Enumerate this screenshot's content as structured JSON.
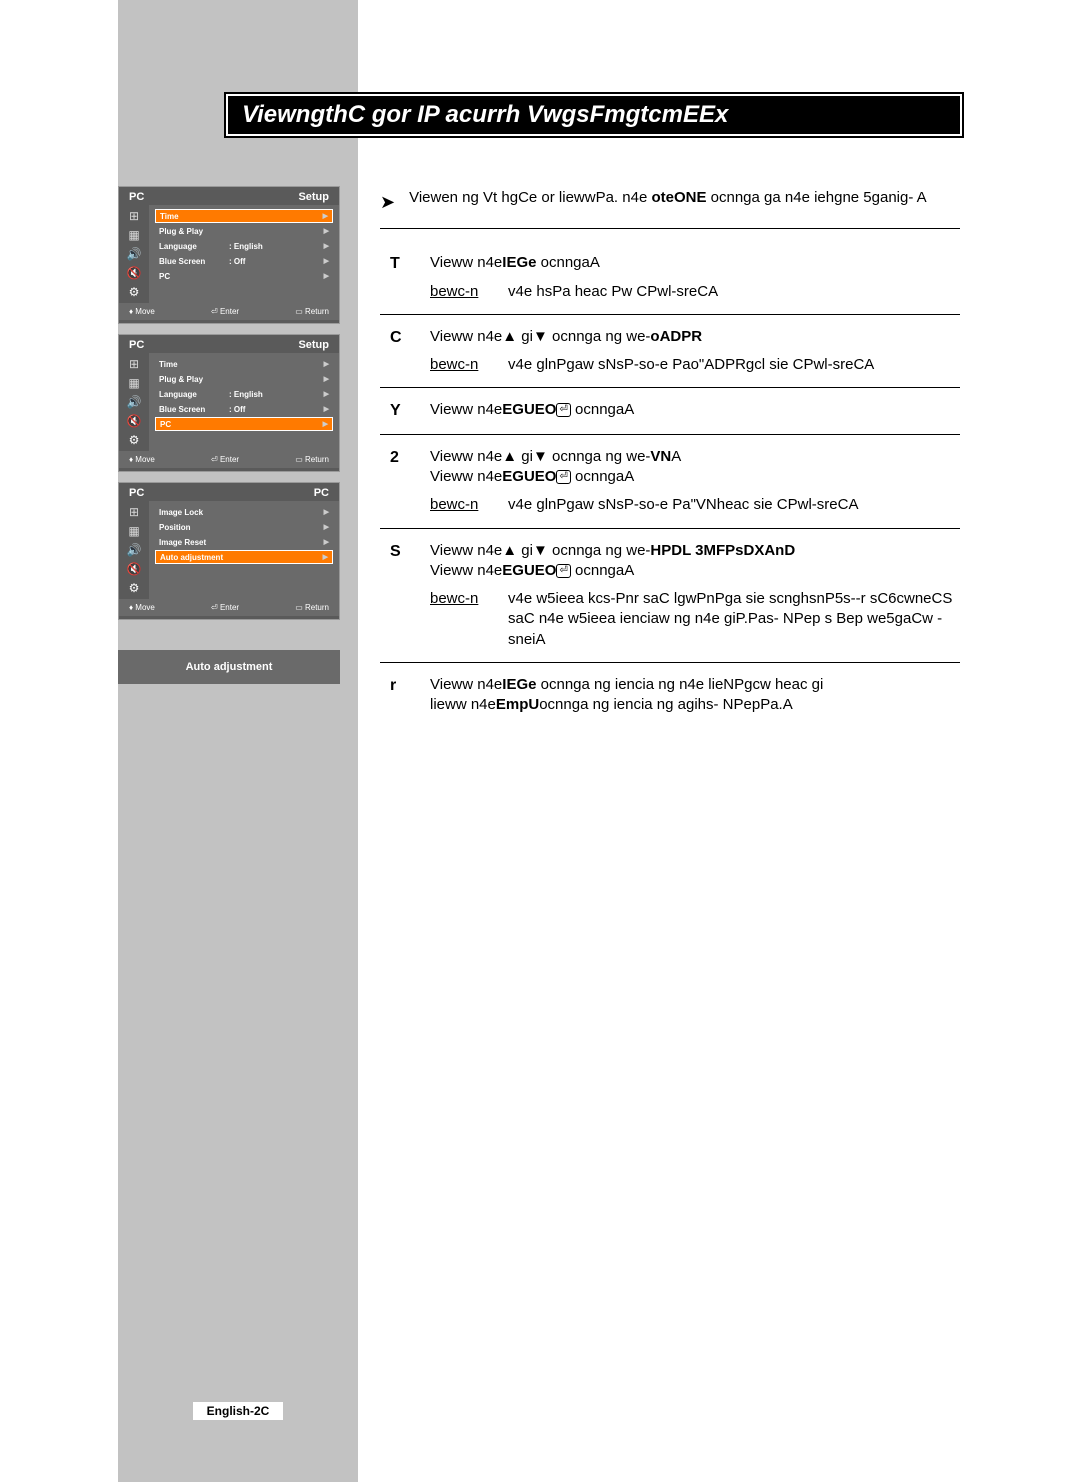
{
  "title": "ViewngthC gor IP acurrh VwgsFmgtcmEEx",
  "sidebar_bg": "#c2c2c2",
  "panels": [
    {
      "header_left": "PC",
      "header_right": "Setup",
      "highlight_index": 0,
      "items": [
        {
          "label": "Time",
          "value": "",
          "arrow": true
        },
        {
          "label": "Plug & Play",
          "value": "",
          "arrow": true
        },
        {
          "label": "Language",
          "value": ": English",
          "arrow": true
        },
        {
          "label": "Blue Screen",
          "value": ": Off",
          "arrow": true
        },
        {
          "label": "PC",
          "value": "",
          "arrow": true
        }
      ]
    },
    {
      "header_left": "PC",
      "header_right": "Setup",
      "highlight_index": 4,
      "items": [
        {
          "label": "Time",
          "value": "",
          "arrow": true
        },
        {
          "label": "Plug & Play",
          "value": "",
          "arrow": true
        },
        {
          "label": "Language",
          "value": ": English",
          "arrow": true
        },
        {
          "label": "Blue Screen",
          "value": ": Off",
          "arrow": true
        },
        {
          "label": "PC",
          "value": "",
          "arrow": true
        }
      ]
    },
    {
      "header_left": "PC",
      "header_right": "PC",
      "highlight_index": 3,
      "items": [
        {
          "label": "Image Lock",
          "value": "",
          "arrow": true
        },
        {
          "label": "Position",
          "value": "",
          "arrow": true
        },
        {
          "label": "Image Reset",
          "value": "",
          "arrow": true
        },
        {
          "label": "Auto adjustment",
          "value": "",
          "arrow": true
        }
      ]
    }
  ],
  "footer": {
    "move": "Move",
    "enter": "Enter",
    "return": "Return"
  },
  "auto_adjustment_label": "Auto adjustment",
  "note": {
    "text_a": "Viewen ng Vt hgCe or liewwPa. n4e",
    "text_b": "oteONE",
    "text_c": "ocnnga ga n4e iehgne 5ganig- A"
  },
  "steps": [
    {
      "num": "T",
      "lines": [
        {
          "parts": [
            "Vieww n4e",
            {
              "b": "IEGe"
            },
            "  ocnngaA"
          ]
        }
      ],
      "result": "v4e hsPa heac Pw CPwl-sreCA"
    },
    {
      "num": "C",
      "lines": [
        {
          "parts": [
            "Vieww n4e",
            {
              "up": true
            },
            " gi",
            {
              "down": true
            },
            "  ocnnga ng we-",
            {
              "b": "oADPR"
            }
          ]
        }
      ],
      "result": "v4e glnPgaw sNsP-so-e Pao\"ADPRgcl sie CPwl-sreCA"
    },
    {
      "num": "Y",
      "lines": [
        {
          "parts": [
            "Vieww n4e",
            {
              "b": "EGUEO"
            },
            {
              "enter": true
            },
            " ocnngaA"
          ]
        }
      ]
    },
    {
      "num": "2",
      "lines": [
        {
          "parts": [
            "Vieww n4e",
            {
              "up": true
            },
            " gi",
            {
              "down": true
            },
            "  ocnnga ng we-",
            {
              "b": "VN"
            },
            "A"
          ]
        },
        {
          "parts": [
            "Vieww n4e",
            {
              "b": "EGUEO"
            },
            {
              "enter": true
            },
            " ocnngaA"
          ]
        }
      ],
      "result": "v4e glnPgaw sNsP-so-e Pa\"VNheac sie CPwl-sreCA"
    },
    {
      "num": "S",
      "lines": [
        {
          "parts": [
            "Vieww n4e",
            {
              "up": true
            },
            " gi",
            {
              "down": true
            },
            "  ocnnga ng we-",
            {
              "b": "HPDL 3MFPsDXAnD"
            }
          ]
        },
        {
          "parts": [
            "Vieww n4e",
            {
              "b": "EGUEO"
            },
            {
              "enter": true
            },
            " ocnngaA"
          ]
        }
      ],
      "result": "v4e w5ieea kcs-Pnr saC lgwPnPga sie scnghsnP5s--r sC6cwneCS saC n4e w5ieea ienciaw ng n4e giP.Pas- NPep s Bep we5gaCw -sneiA"
    },
    {
      "num": "r",
      "lines": [
        {
          "parts": [
            "Vieww n4e",
            {
              "b": "IEGe"
            },
            "  ocnnga ng iencia ng n4e lieNPgcw heac gi"
          ]
        },
        {
          "parts": [
            "lieww n4e",
            {
              "b": "EmpU"
            },
            "ocnnga ng iencia ng agihs- NPepPa.A"
          ]
        }
      ]
    }
  ],
  "result_label": "bewc-n",
  "page_number": "English-2C",
  "icons": [
    "⊞",
    "▦",
    "🔊",
    "🔇",
    "⚙"
  ]
}
